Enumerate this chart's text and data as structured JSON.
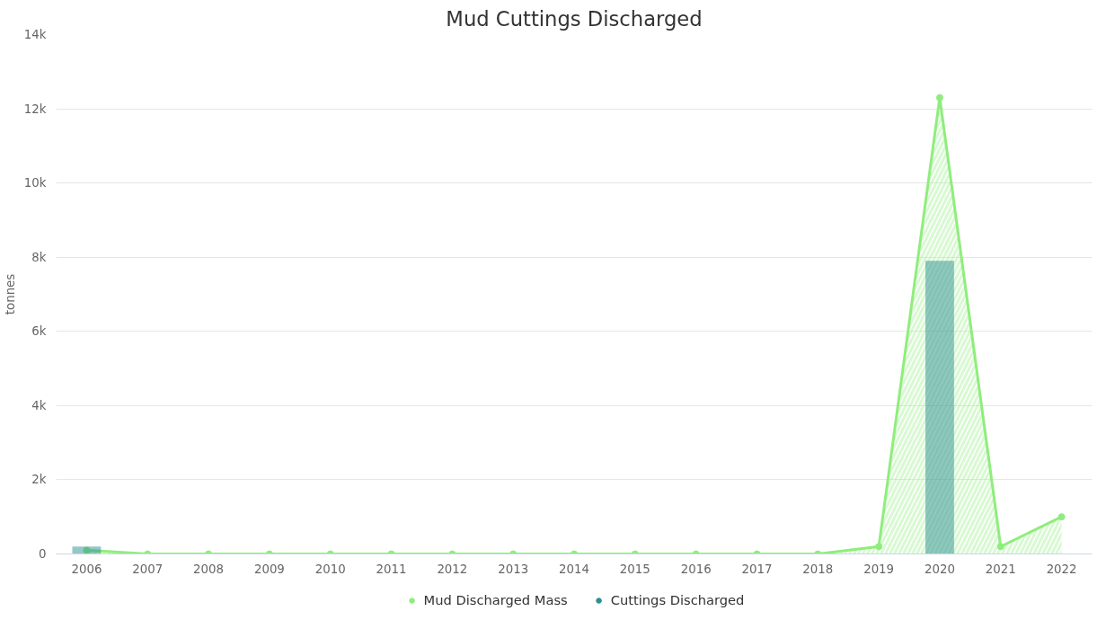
{
  "chart_data": {
    "type": "bar",
    "title": "Mud Cuttings Discharged",
    "ylabel": "tonnes",
    "categories": [
      "2006",
      "2007",
      "2008",
      "2009",
      "2010",
      "2011",
      "2012",
      "2013",
      "2014",
      "2015",
      "2016",
      "2017",
      "2018",
      "2019",
      "2020",
      "2021",
      "2022"
    ],
    "series": [
      {
        "name": "Mud Discharged Mass",
        "type": "area",
        "color": "#90ed7d",
        "values": [
          100,
          0,
          0,
          0,
          0,
          0,
          0,
          0,
          0,
          0,
          0,
          0,
          0,
          200,
          12300,
          200,
          1000
        ]
      },
      {
        "name": "Cuttings Discharged",
        "color": "#2b908f",
        "values": [
          200,
          null,
          null,
          null,
          null,
          null,
          null,
          null,
          null,
          null,
          null,
          null,
          null,
          null,
          7900,
          null,
          null
        ]
      }
    ],
    "ylim": [
      0,
      14000
    ],
    "yticks": [
      0,
      {
        "value": 2000,
        "label": "2k"
      },
      {
        "value": 4000,
        "label": "4k"
      },
      {
        "value": 6000,
        "label": "6k"
      },
      {
        "value": 8000,
        "label": "8k"
      },
      {
        "value": 10000,
        "label": "10k"
      },
      {
        "value": 12000,
        "label": "12k"
      },
      {
        "value": 14000,
        "label": "14k"
      }
    ],
    "grid": "y",
    "legend": "bottom",
    "marker": "circle"
  }
}
